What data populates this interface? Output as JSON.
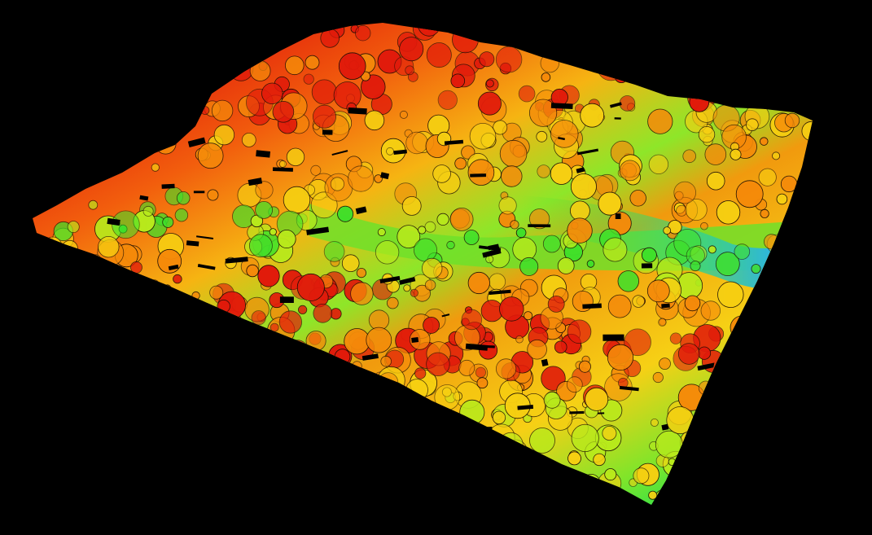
{
  "scene": {
    "subject": "lidar-point-cloud-terrain",
    "color_ramp": "elevation",
    "colors": {
      "background": "#000000",
      "lowest": "#1f3fbf",
      "low": "#2fb7d9",
      "low_mid": "#3fe02a",
      "mid": "#b8ea1c",
      "mid_high": "#f6cf12",
      "high": "#f58a0a",
      "highest": "#e11b0b",
      "outline": "#1a0d05"
    }
  }
}
